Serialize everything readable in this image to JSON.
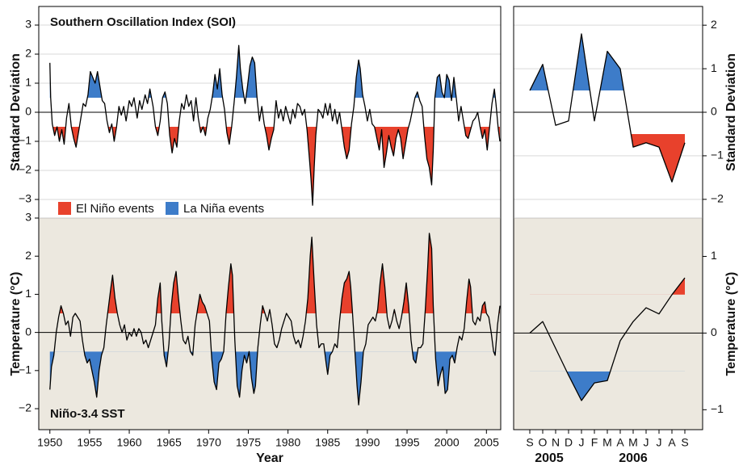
{
  "chart_data": [
    {
      "type": "line",
      "title": "Southern Oscillation Index (SOI)",
      "y_label": "Standard Deviation",
      "ylim": [
        -3.64,
        3.64
      ],
      "yticks": [
        {
          "value": -3,
          "label": "−3"
        },
        {
          "value": -2,
          "label": "−2"
        },
        {
          "value": -1,
          "label": "−1"
        },
        0,
        1,
        2,
        3
      ],
      "grid": true,
      "threshold": 0.5,
      "fill_above": "#3d7cc9",
      "fill_below": "#e8412c",
      "legend": [
        {
          "name": "El Niño events",
          "color": "#e8412c"
        },
        {
          "name": "La Niña events",
          "color": "#3d7cc9"
        }
      ],
      "x": [
        1950.0,
        1950.1,
        1950.3,
        1950.6,
        1950.9,
        1951.2,
        1951.5,
        1951.8,
        1952.1,
        1952.4,
        1952.7,
        1953.0,
        1953.3,
        1953.6,
        1953.9,
        1954.2,
        1954.5,
        1954.8,
        1955.1,
        1955.4,
        1955.7,
        1956.0,
        1956.3,
        1956.6,
        1956.9,
        1957.2,
        1957.5,
        1957.8,
        1958.1,
        1958.4,
        1958.7,
        1959.0,
        1959.3,
        1959.6,
        1960.0,
        1960.3,
        1960.6,
        1961.0,
        1961.3,
        1961.6,
        1962.0,
        1962.3,
        1962.6,
        1963.0,
        1963.3,
        1963.6,
        1963.9,
        1964.2,
        1964.5,
        1964.8,
        1965.1,
        1965.4,
        1965.7,
        1966.0,
        1966.3,
        1966.6,
        1966.9,
        1967.2,
        1967.5,
        1967.8,
        1968.1,
        1968.4,
        1968.7,
        1969.0,
        1969.3,
        1969.6,
        1969.9,
        1970.2,
        1970.5,
        1970.8,
        1971.1,
        1971.4,
        1971.7,
        1972.0,
        1972.3,
        1972.6,
        1972.9,
        1973.2,
        1973.5,
        1973.8,
        1974.0,
        1974.3,
        1974.6,
        1974.9,
        1975.2,
        1975.5,
        1975.8,
        1976.1,
        1976.4,
        1976.7,
        1977.0,
        1977.3,
        1977.6,
        1977.9,
        1978.2,
        1978.5,
        1978.8,
        1979.1,
        1979.4,
        1979.7,
        1980.0,
        1980.3,
        1980.6,
        1980.9,
        1981.2,
        1981.5,
        1981.8,
        1982.1,
        1982.4,
        1982.7,
        1982.9,
        1983.1,
        1983.3,
        1983.5,
        1983.8,
        1984.1,
        1984.4,
        1984.7,
        1985.0,
        1985.3,
        1985.6,
        1985.9,
        1986.2,
        1986.5,
        1986.8,
        1987.1,
        1987.4,
        1987.7,
        1988.0,
        1988.3,
        1988.6,
        1988.9,
        1989.1,
        1989.4,
        1989.7,
        1990.0,
        1990.3,
        1990.6,
        1990.9,
        1991.2,
        1991.5,
        1991.8,
        1992.1,
        1992.4,
        1992.7,
        1993.0,
        1993.3,
        1993.6,
        1993.9,
        1994.2,
        1994.5,
        1994.8,
        1995.1,
        1995.4,
        1995.7,
        1996.0,
        1996.3,
        1996.6,
        1996.9,
        1997.2,
        1997.5,
        1997.8,
        1998.1,
        1998.3,
        1998.5,
        1998.8,
        1999.1,
        1999.4,
        1999.7,
        2000.0,
        2000.3,
        2000.6,
        2000.9,
        2001.2,
        2001.5,
        2001.8,
        2002.1,
        2002.4,
        2002.7,
        2003.0,
        2003.3,
        2003.6,
        2003.9,
        2004.2,
        2004.5,
        2004.8,
        2005.1,
        2005.4,
        2005.7,
        2006.0,
        2006.2,
        2006.5,
        2006.7
      ],
      "series": [
        {
          "name": "SOI",
          "color": "#000000",
          "values": [
            1.7,
            0.5,
            -0.4,
            -0.8,
            -0.5,
            -1.0,
            -0.6,
            -1.1,
            -0.2,
            0.3,
            -0.5,
            -0.9,
            -1.2,
            -0.7,
            -0.2,
            0.3,
            0.2,
            0.6,
            1.4,
            1.2,
            1.0,
            1.4,
            0.9,
            0.4,
            0.3,
            -0.3,
            -0.7,
            -0.4,
            -1.0,
            -0.5,
            0.2,
            -0.1,
            0.2,
            -0.3,
            0.4,
            0.2,
            0.5,
            -0.2,
            0.4,
            0.1,
            0.6,
            0.3,
            0.8,
            0.2,
            -0.5,
            -0.8,
            -0.3,
            0.5,
            0.7,
            0.3,
            -0.8,
            -1.4,
            -0.9,
            -1.2,
            -0.3,
            0.3,
            0.1,
            0.6,
            0.2,
            0.4,
            -0.3,
            0.5,
            -0.2,
            -0.7,
            -0.5,
            -0.8,
            -0.2,
            0.1,
            0.6,
            1.3,
            0.8,
            1.5,
            0.6,
            0.1,
            -0.7,
            -1.1,
            -0.5,
            0.3,
            1.2,
            2.3,
            1.5,
            0.8,
            0.3,
            0.9,
            1.6,
            1.9,
            1.7,
            0.5,
            -0.3,
            0.2,
            -0.4,
            -0.8,
            -1.3,
            -0.9,
            -0.6,
            0.4,
            -0.2,
            0.1,
            -0.3,
            0.2,
            -0.1,
            -0.4,
            0.1,
            -0.2,
            0.3,
            0.2,
            -0.1,
            0.1,
            -0.6,
            -1.6,
            -2.3,
            -3.2,
            -1.9,
            -0.8,
            0.1,
            0.0,
            -0.2,
            0.3,
            -0.1,
            0.3,
            -0.3,
            0.1,
            -0.4,
            0.0,
            -0.6,
            -1.2,
            -1.6,
            -1.3,
            -0.4,
            0.2,
            1.2,
            1.8,
            1.5,
            0.6,
            0.2,
            -0.3,
            0.1,
            -0.4,
            -0.5,
            -0.9,
            -1.3,
            -0.6,
            -1.9,
            -1.4,
            -0.8,
            -1.2,
            -1.5,
            -0.9,
            -0.6,
            -0.9,
            -1.6,
            -1.1,
            -0.6,
            -0.3,
            0.1,
            0.5,
            0.7,
            0.4,
            0.2,
            -0.8,
            -1.6,
            -1.9,
            -2.5,
            -1.3,
            0.5,
            1.2,
            1.3,
            0.7,
            0.5,
            1.3,
            1.1,
            0.4,
            1.2,
            0.5,
            -0.3,
            0.2,
            -0.3,
            -0.8,
            -0.9,
            -0.6,
            -0.3,
            -0.2,
            0.0,
            -0.5,
            -0.9,
            -0.6,
            -1.3,
            -0.5,
            0.3,
            0.8,
            0.3,
            -0.6,
            -1.0
          ]
        }
      ]
    },
    {
      "type": "line",
      "title": "Niño-3.4 SST",
      "y_label": "Temperature (°C)",
      "x_label": "Year",
      "xlim": [
        1948.6,
        2006.8
      ],
      "xticks": [
        1950,
        1955,
        1960,
        1965,
        1970,
        1975,
        1980,
        1985,
        1990,
        1995,
        2000,
        2005
      ],
      "ylim": [
        -2.55,
        3.0
      ],
      "yticks": [
        {
          "value": -2,
          "label": "−2"
        },
        {
          "value": -1,
          "label": "−1"
        },
        0,
        1,
        2,
        3
      ],
      "grid": false,
      "threshold": 0.5,
      "fill_above": "#e8412c",
      "fill_below": "#3d7cc9",
      "x": [
        1950.0,
        1950.2,
        1950.5,
        1950.8,
        1951.1,
        1951.4,
        1951.7,
        1952.0,
        1952.3,
        1952.6,
        1952.9,
        1953.2,
        1953.5,
        1953.8,
        1954.1,
        1954.4,
        1954.7,
        1955.0,
        1955.3,
        1955.6,
        1955.9,
        1956.2,
        1956.5,
        1956.8,
        1957.1,
        1957.4,
        1957.7,
        1957.9,
        1958.2,
        1958.5,
        1958.8,
        1959.1,
        1959.4,
        1959.7,
        1960.0,
        1960.3,
        1960.6,
        1960.9,
        1961.2,
        1961.5,
        1961.8,
        1962.1,
        1962.4,
        1962.7,
        1963.0,
        1963.3,
        1963.6,
        1963.9,
        1964.1,
        1964.4,
        1964.7,
        1965.0,
        1965.3,
        1965.6,
        1965.9,
        1966.2,
        1966.5,
        1966.8,
        1967.1,
        1967.4,
        1967.7,
        1968.0,
        1968.3,
        1968.6,
        1968.9,
        1969.2,
        1969.5,
        1969.8,
        1970.1,
        1970.4,
        1970.7,
        1971.0,
        1971.3,
        1971.6,
        1971.9,
        1972.2,
        1972.5,
        1972.8,
        1973.0,
        1973.3,
        1973.6,
        1973.9,
        1974.2,
        1974.5,
        1974.8,
        1975.1,
        1975.4,
        1975.7,
        1975.9,
        1976.2,
        1976.5,
        1976.8,
        1977.1,
        1977.4,
        1977.7,
        1978.0,
        1978.3,
        1978.6,
        1978.9,
        1979.2,
        1979.5,
        1979.8,
        1980.1,
        1980.4,
        1980.7,
        1981.0,
        1981.3,
        1981.6,
        1981.9,
        1982.2,
        1982.5,
        1982.8,
        1983.0,
        1983.3,
        1983.6,
        1983.9,
        1984.2,
        1984.5,
        1984.8,
        1985.0,
        1985.3,
        1985.6,
        1985.9,
        1986.2,
        1986.5,
        1986.8,
        1987.1,
        1987.4,
        1987.7,
        1987.9,
        1988.1,
        1988.4,
        1988.7,
        1988.9,
        1989.2,
        1989.5,
        1989.8,
        1990.1,
        1990.4,
        1990.7,
        1991.0,
        1991.3,
        1991.6,
        1991.9,
        1992.2,
        1992.5,
        1992.8,
        1993.1,
        1993.4,
        1993.7,
        1994.0,
        1994.3,
        1994.6,
        1994.9,
        1995.2,
        1995.5,
        1995.8,
        1996.1,
        1996.4,
        1996.7,
        1997.0,
        1997.3,
        1997.6,
        1997.8,
        1998.1,
        1998.3,
        1998.6,
        1998.9,
        1999.2,
        1999.5,
        1999.8,
        2000.1,
        2000.4,
        2000.7,
        2001.0,
        2001.3,
        2001.6,
        2001.9,
        2002.2,
        2002.5,
        2002.8,
        2003.0,
        2003.3,
        2003.6,
        2003.9,
        2004.2,
        2004.5,
        2004.8,
        2005.0,
        2005.3,
        2005.6,
        2005.9,
        2006.1,
        2006.4,
        2006.7
      ],
      "series": [
        {
          "name": "Niño-3.4 SST",
          "color": "#000000",
          "values": [
            -1.5,
            -0.9,
            -0.6,
            0.0,
            0.4,
            0.7,
            0.5,
            0.2,
            0.3,
            -0.1,
            0.4,
            0.5,
            0.4,
            0.3,
            -0.2,
            -0.6,
            -0.8,
            -0.7,
            -1.0,
            -1.3,
            -1.7,
            -1.0,
            -0.6,
            -0.4,
            0.2,
            0.7,
            1.2,
            1.5,
            0.9,
            0.5,
            0.2,
            0.0,
            0.2,
            -0.2,
            0.0,
            -0.1,
            0.1,
            -0.1,
            0.1,
            0.0,
            -0.3,
            -0.2,
            -0.4,
            -0.2,
            0.0,
            0.2,
            0.9,
            1.3,
            0.3,
            -0.6,
            -0.9,
            -0.3,
            0.7,
            1.3,
            1.6,
            0.9,
            0.3,
            -0.2,
            -0.3,
            -0.1,
            -0.5,
            -0.6,
            0.2,
            0.6,
            1.0,
            0.8,
            0.7,
            0.5,
            0.3,
            -0.7,
            -1.3,
            -1.5,
            -0.8,
            -0.7,
            -0.5,
            0.5,
            1.2,
            1.8,
            1.5,
            -0.2,
            -1.4,
            -1.7,
            -1.0,
            -0.6,
            -0.8,
            -0.5,
            -1.2,
            -1.6,
            -1.4,
            -0.4,
            0.2,
            0.7,
            0.5,
            0.3,
            0.6,
            0.2,
            -0.3,
            -0.4,
            -0.2,
            0.1,
            0.3,
            0.5,
            0.4,
            0.3,
            -0.1,
            -0.3,
            -0.2,
            -0.4,
            -0.1,
            0.3,
            0.9,
            2.0,
            2.5,
            1.3,
            0.2,
            -0.4,
            -0.3,
            -0.3,
            -0.8,
            -1.1,
            -0.6,
            -0.5,
            -0.3,
            -0.4,
            0.3,
            0.9,
            1.3,
            1.4,
            1.6,
            1.2,
            0.6,
            -0.4,
            -1.4,
            -1.9,
            -1.3,
            -0.5,
            -0.3,
            0.2,
            0.3,
            0.4,
            0.3,
            0.6,
            1.3,
            1.8,
            1.2,
            0.4,
            0.1,
            0.3,
            0.6,
            0.3,
            0.1,
            0.4,
            0.8,
            1.3,
            0.7,
            -0.2,
            -0.7,
            -0.8,
            -0.4,
            -0.4,
            -0.3,
            0.6,
            1.7,
            2.6,
            2.2,
            0.7,
            -0.7,
            -1.4,
            -1.1,
            -0.9,
            -1.6,
            -1.5,
            -0.7,
            -0.6,
            -0.8,
            -0.4,
            -0.1,
            -0.2,
            0.1,
            0.8,
            1.4,
            1.2,
            0.3,
            0.2,
            0.4,
            0.3,
            0.7,
            0.8,
            0.5,
            0.4,
            0.0,
            -0.5,
            -0.6,
            0.2,
            0.7
          ]
        }
      ]
    },
    {
      "type": "line",
      "y_label": "Standard Deviation",
      "ylim": [
        -2.43,
        2.43
      ],
      "yticks": [
        {
          "value": -2,
          "label": "−2"
        },
        {
          "value": -1,
          "label": "−1"
        },
        0,
        1,
        2
      ],
      "grid": true,
      "threshold": 0.5,
      "fill_above": "#3d7cc9",
      "fill_below": "#e8412c",
      "series": [
        {
          "name": "SOI",
          "color": "#000000",
          "values": [
            0.5,
            1.1,
            -0.3,
            -0.2,
            1.8,
            -0.2,
            1.4,
            1.0,
            -0.8,
            -0.7,
            -0.8,
            -1.6,
            -0.7
          ]
        }
      ]
    },
    {
      "type": "line",
      "y_label": "Temperature (°C)",
      "categories": [
        "S",
        "O",
        "N",
        "D",
        "J",
        "F",
        "M",
        "A",
        "M",
        "J",
        "J",
        "A",
        "S"
      ],
      "years": [
        "2005",
        "2006"
      ],
      "ylim": [
        -1.26,
        1.5
      ],
      "yticks": [
        {
          "value": -1,
          "label": "−1"
        },
        0,
        1
      ],
      "grid": false,
      "threshold": 0.5,
      "fill_above": "#e8412c",
      "fill_below": "#3d7cc9",
      "series": [
        {
          "name": "Niño-3.4 SST",
          "color": "#000000",
          "values": [
            0.0,
            0.15,
            -0.2,
            -0.55,
            -0.88,
            -0.65,
            -0.62,
            -0.1,
            0.15,
            0.33,
            0.25,
            0.5,
            0.72
          ]
        }
      ]
    }
  ]
}
